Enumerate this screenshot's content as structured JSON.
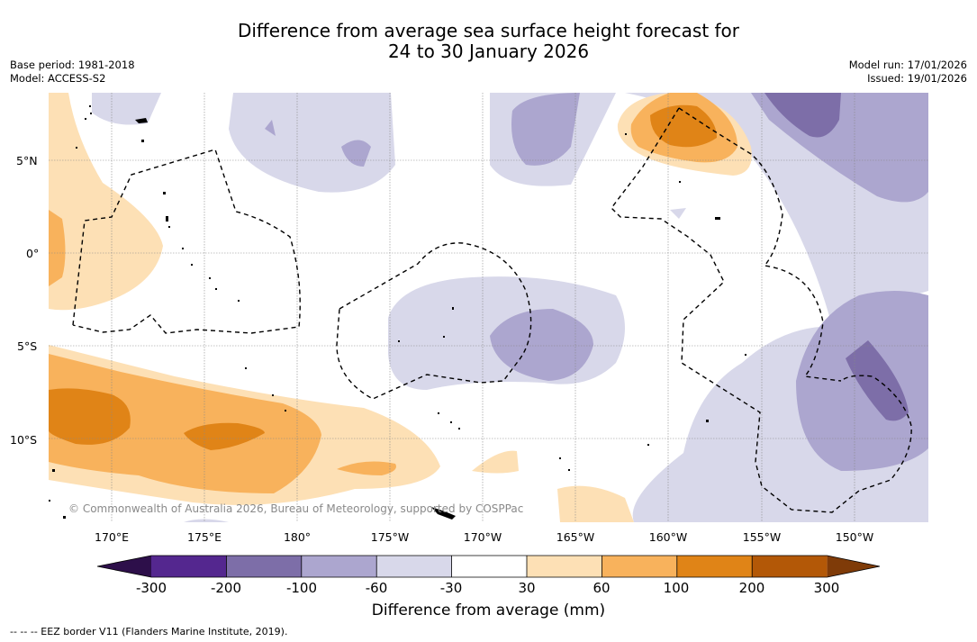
{
  "title": {
    "line1": "Difference from average sea surface height forecast for",
    "line2": "24 to 30 January 2026"
  },
  "meta": {
    "base_period": "Base period: 1981-2018",
    "model": "Model: ACCESS-S2",
    "model_run": "Model run: 17/01/2026",
    "issued": "Issued: 19/01/2026"
  },
  "map": {
    "lat_labels": [
      "5°N",
      "0°",
      "5°S",
      "10°S"
    ],
    "lon_labels": [
      "170°E",
      "175°E",
      "180°",
      "175°W",
      "170°W",
      "165°W",
      "160°W",
      "155°W",
      "150°W"
    ],
    "copyright": "© Commonwealth of Australia 2026, Bureau of Meteorology, supported by COSPPac"
  },
  "colorbar": {
    "labels": [
      "-300",
      "-200",
      "-100",
      "-60",
      "-30",
      "30",
      "60",
      "100",
      "200",
      "300"
    ],
    "colors": [
      "#2d0f4a",
      "#54278f",
      "#7d6ea8",
      "#aca6cf",
      "#d8d8ea",
      "#ffffff",
      "#fde0b5",
      "#f8b25c",
      "#e08417",
      "#b35807",
      "#7f3b08"
    ],
    "title": "Difference from average (mm)"
  },
  "legend": {
    "eez": "--  --  -- EEZ border V11 (Flanders Marine Institute, 2019)."
  }
}
